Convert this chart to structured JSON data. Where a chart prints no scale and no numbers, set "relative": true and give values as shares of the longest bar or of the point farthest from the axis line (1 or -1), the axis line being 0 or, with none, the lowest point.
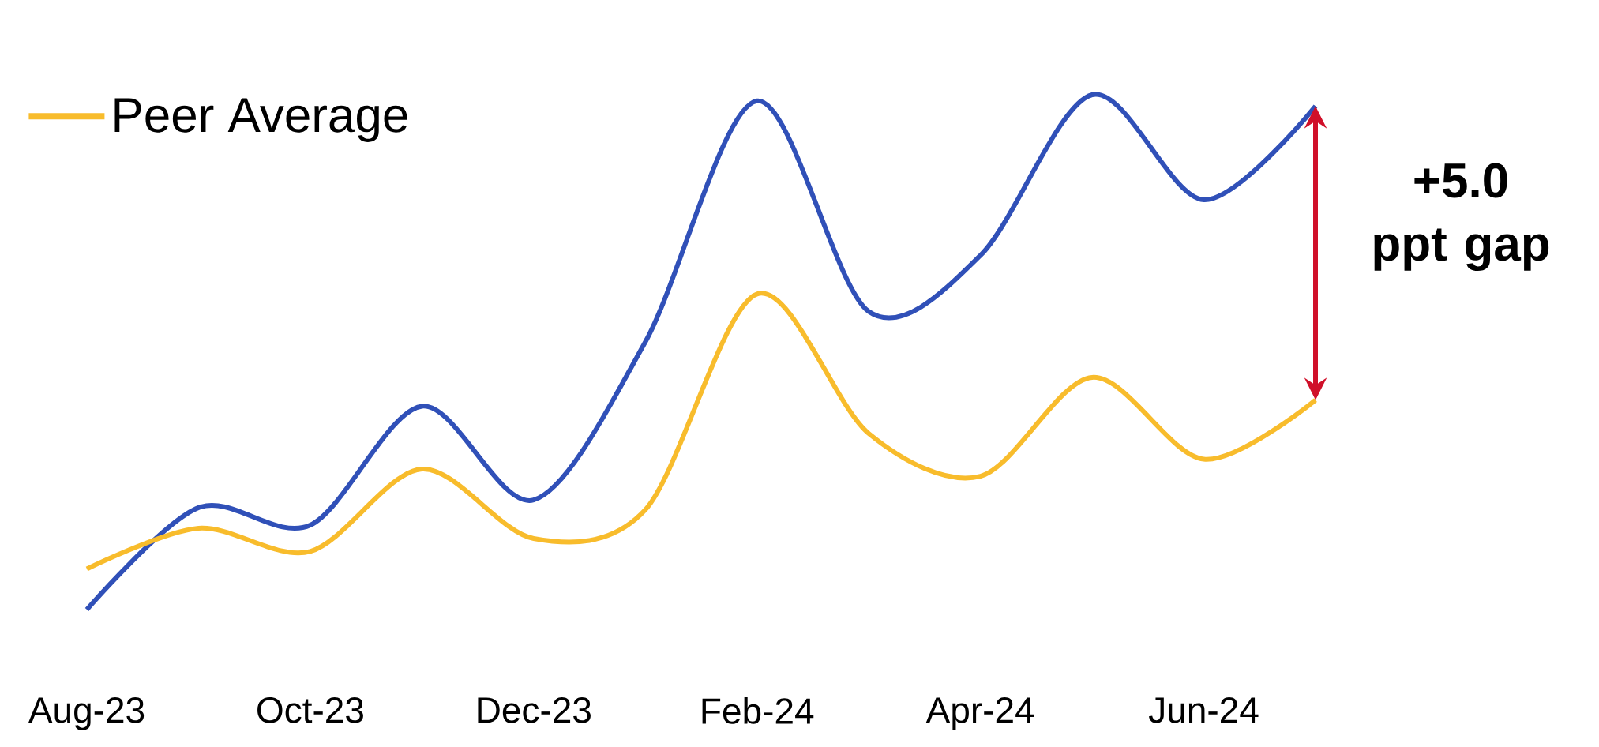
{
  "chart_data": {
    "type": "line",
    "relative": true,
    "categories": [
      "Aug-23",
      null,
      "Oct-23",
      null,
      "Dec-23",
      null,
      "Feb-24",
      null,
      "Apr-24",
      null,
      "Jun-24",
      null
    ],
    "series": [
      {
        "color": "#3050b8",
        "values": [
          0,
          0.198,
          0.164,
          0.395,
          0.213,
          0.52,
          0.988,
          0.579,
          0.688,
          1.0,
          0.796,
          0.978
        ]
      },
      {
        "name": "Peer Average",
        "color": "#f8bc2c",
        "values": [
          0.079,
          0.158,
          0.113,
          0.273,
          0.138,
          0.194,
          0.613,
          0.342,
          0.259,
          0.451,
          0.292,
          0.407
        ]
      }
    ],
    "annotations": [
      "+5.0 ppt gap"
    ],
    "legend": "top left",
    "grid": false,
    "marker": "none",
    "line_style": "solid"
  }
}
